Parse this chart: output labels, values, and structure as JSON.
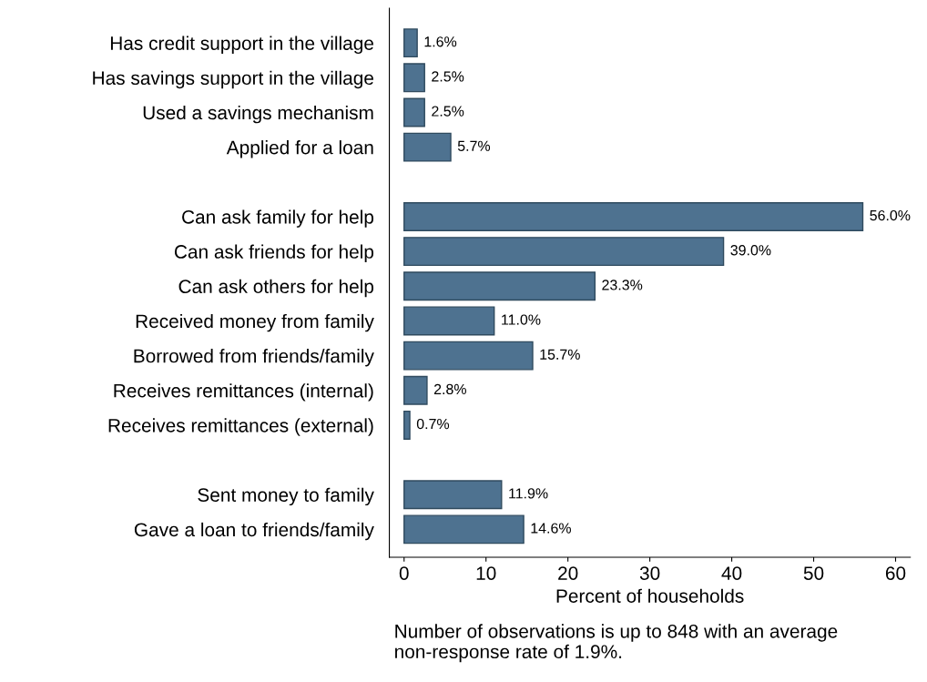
{
  "chart_data": {
    "type": "bar",
    "orientation": "horizontal",
    "xlabel": "Percent of households",
    "categories": [
      "Has credit support in the village",
      "Has savings support in the village",
      "Used a savings mechanism",
      "Applied for a loan",
      null,
      "Can ask family for help",
      "Can ask friends for help",
      "Can ask others for help",
      "Received money from family",
      "Borrowed from friends/family",
      "Receives remittances (internal)",
      "Receives remittances (external)",
      null,
      "Sent money to family",
      "Gave a loan to friends/family"
    ],
    "values": [
      1.6,
      2.5,
      2.5,
      5.7,
      null,
      56.0,
      39.0,
      23.3,
      11.0,
      15.7,
      2.8,
      0.7,
      null,
      11.9,
      14.6
    ],
    "value_labels": [
      "1.6%",
      "2.5%",
      "2.5%",
      "5.7%",
      null,
      "56.0%",
      "39.0%",
      "23.3%",
      "11.0%",
      "15.7%",
      "2.8%",
      "0.7%",
      null,
      "11.9%",
      "14.6%"
    ],
    "color": "#4e7290",
    "xlim": [
      -1.8,
      61.8
    ],
    "xticks": [
      0,
      10,
      20,
      30,
      40,
      50,
      60
    ],
    "grid": false,
    "legend": false,
    "annotations": [
      "Number of observations is up to 848 with an average non-response rate of 1.9%."
    ]
  }
}
